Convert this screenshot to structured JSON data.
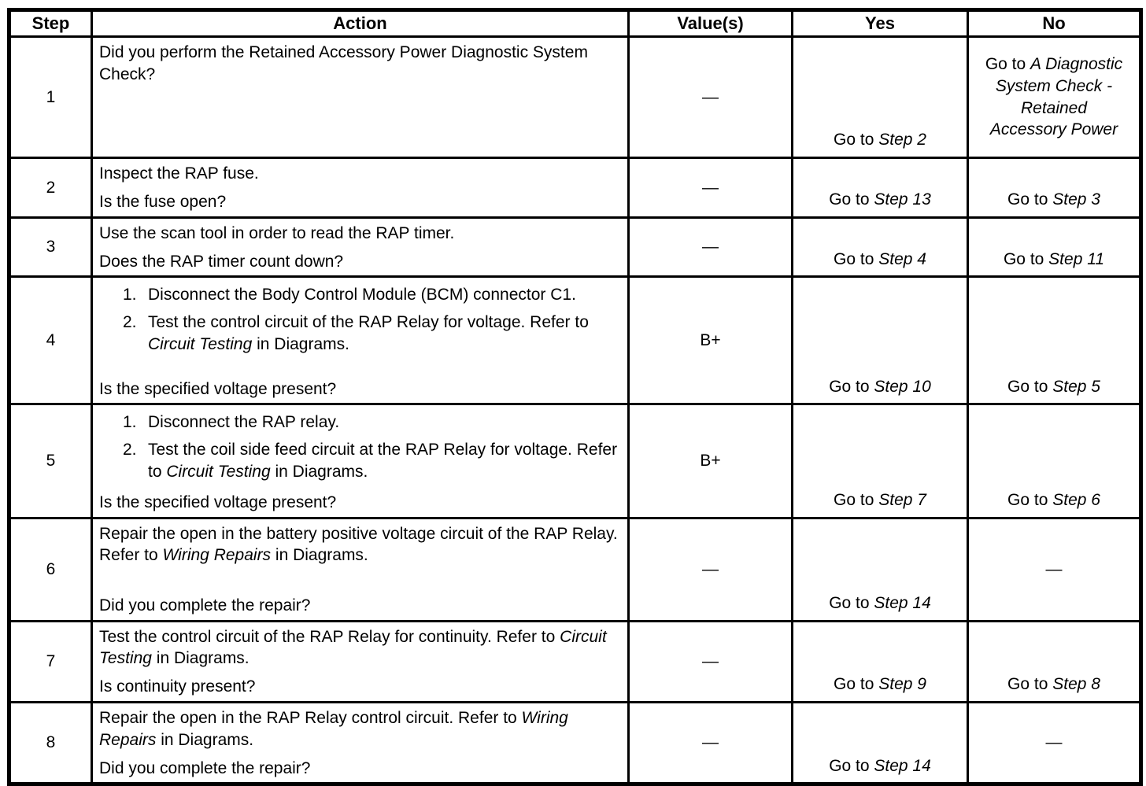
{
  "labels": {
    "go_to": "Go to",
    "dash": "—"
  },
  "table": {
    "headers": [
      "Step",
      "Action",
      "Value(s)",
      "Yes",
      "No"
    ],
    "rows": [
      {
        "step": "1",
        "action": {
          "blocks": [
            {
              "type": "para",
              "segments": [
                {
                  "t": "Did you perform the Retained Accessory Power Diagnostic System Check?",
                  "i": false
                }
              ]
            }
          ],
          "question": null
        },
        "value": {
          "kind": "dash"
        },
        "yes": {
          "kind": "goto",
          "target": "Step 2"
        },
        "no": {
          "kind": "goto-ref",
          "target": "A Diagnostic System Check - Retained Accessory Power"
        }
      },
      {
        "step": "2",
        "action": {
          "blocks": [
            {
              "type": "para",
              "segments": [
                {
                  "t": "Inspect the RAP fuse.",
                  "i": false
                }
              ]
            }
          ],
          "question": "Is the fuse open?"
        },
        "value": {
          "kind": "dash"
        },
        "yes": {
          "kind": "goto",
          "target": "Step 13"
        },
        "no": {
          "kind": "goto",
          "target": "Step 3"
        }
      },
      {
        "step": "3",
        "action": {
          "blocks": [
            {
              "type": "para",
              "segments": [
                {
                  "t": "Use the scan tool in order to read the RAP timer.",
                  "i": false
                }
              ]
            }
          ],
          "question": "Does the RAP timer count down?"
        },
        "value": {
          "kind": "dash"
        },
        "yes": {
          "kind": "goto",
          "target": "Step 4"
        },
        "no": {
          "kind": "goto",
          "target": "Step 11"
        }
      },
      {
        "step": "4",
        "action": {
          "blocks": [
            {
              "type": "list",
              "number": "1.",
              "segments": [
                {
                  "t": "Disconnect the Body Control Module (BCM) connector C1.",
                  "i": false
                }
              ]
            },
            {
              "type": "list",
              "number": "2.",
              "segments": [
                {
                  "t": "Test the control circuit of the RAP Relay for voltage. Refer to ",
                  "i": false
                },
                {
                  "t": "Circuit Testing",
                  "i": true
                },
                {
                  "t": " in Diagrams.",
                  "i": false
                }
              ]
            }
          ],
          "question": "Is the specified voltage present?"
        },
        "value": {
          "kind": "text",
          "text": "B+"
        },
        "yes": {
          "kind": "goto",
          "target": "Step 10"
        },
        "no": {
          "kind": "goto",
          "target": "Step 5"
        }
      },
      {
        "step": "5",
        "action": {
          "blocks": [
            {
              "type": "list",
              "number": "1.",
              "segments": [
                {
                  "t": "Disconnect the RAP relay.",
                  "i": false
                }
              ]
            },
            {
              "type": "list",
              "number": "2.",
              "segments": [
                {
                  "t": "Test the coil side feed circuit at the RAP Relay for voltage. Refer to ",
                  "i": false
                },
                {
                  "t": "Circuit Testing",
                  "i": true
                },
                {
                  "t": " in Diagrams.",
                  "i": false
                }
              ]
            }
          ],
          "question": "Is the specified voltage present?"
        },
        "value": {
          "kind": "text",
          "text": "B+"
        },
        "yes": {
          "kind": "goto",
          "target": "Step 7"
        },
        "no": {
          "kind": "goto",
          "target": "Step 6"
        }
      },
      {
        "step": "6",
        "action": {
          "blocks": [
            {
              "type": "para",
              "segments": [
                {
                  "t": "Repair the open in the battery positive voltage circuit of the RAP Relay. Refer to ",
                  "i": false
                },
                {
                  "t": "Wiring Repairs",
                  "i": true
                },
                {
                  "t": " in Diagrams.",
                  "i": false
                }
              ]
            }
          ],
          "question": "Did you complete the repair?"
        },
        "value": {
          "kind": "dash"
        },
        "yes": {
          "kind": "goto",
          "target": "Step 14"
        },
        "no": {
          "kind": "dash"
        }
      },
      {
        "step": "7",
        "action": {
          "blocks": [
            {
              "type": "para",
              "segments": [
                {
                  "t": "Test the control circuit of the RAP Relay for continuity. Refer to ",
                  "i": false
                },
                {
                  "t": "Circuit Testing",
                  "i": true
                },
                {
                  "t": " in Diagrams.",
                  "i": false
                }
              ]
            }
          ],
          "question": "Is continuity present?"
        },
        "value": {
          "kind": "dash"
        },
        "yes": {
          "kind": "goto",
          "target": "Step 9"
        },
        "no": {
          "kind": "goto",
          "target": "Step 8"
        }
      },
      {
        "step": "8",
        "action": {
          "blocks": [
            {
              "type": "para",
              "segments": [
                {
                  "t": "Repair the open in the RAP Relay control circuit. Refer to ",
                  "i": false
                },
                {
                  "t": "Wiring Repairs",
                  "i": true
                },
                {
                  "t": " in Diagrams.",
                  "i": false
                }
              ]
            }
          ],
          "question": "Did you complete the repair?"
        },
        "value": {
          "kind": "dash"
        },
        "yes": {
          "kind": "goto",
          "target": "Step 14"
        },
        "no": {
          "kind": "dash"
        }
      }
    ]
  }
}
